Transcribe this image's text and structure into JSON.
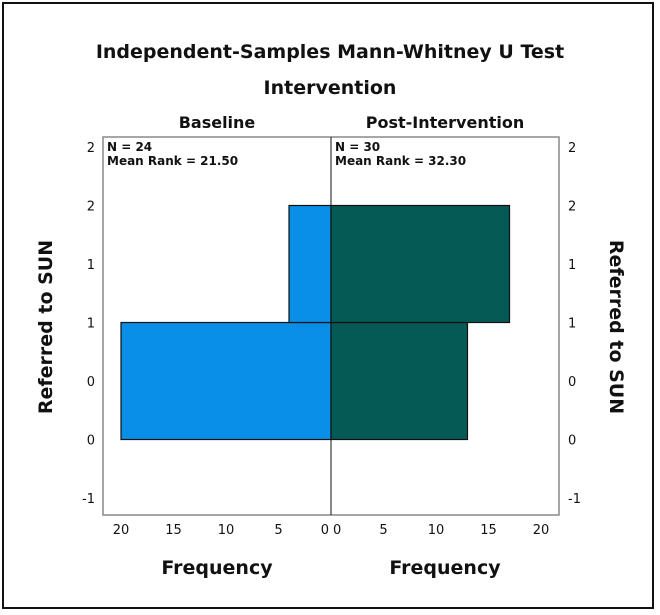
{
  "chart_data": {
    "type": "bar",
    "orientation": "back-to-back-horizontal-histogram",
    "title": "Independent-Samples Mann-Whitney U Test",
    "subtitle": "Intervention",
    "ylabel": "Referred to SUN",
    "xlabel": "Frequency",
    "ylim": [
      -0.5,
      2.5
    ],
    "y_tick_values": [
      2.5,
      2,
      1.5,
      1,
      0.5,
      0,
      -0.5
    ],
    "y_tick_labels": [
      "2",
      "2",
      "1",
      "1",
      "0",
      "0",
      "-1"
    ],
    "xlim": [
      0,
      21
    ],
    "x_tick_values": [
      0,
      5,
      10,
      15,
      20
    ],
    "x_tick_labels": [
      "0",
      "5",
      "10",
      "15",
      "20"
    ],
    "bins": [
      [
        0,
        1
      ],
      [
        1,
        2
      ]
    ],
    "series": [
      {
        "name": "Baseline",
        "side": "left",
        "color": "#0a8fe8",
        "values": [
          20,
          4
        ],
        "n_label": "N = 24",
        "mean_rank_label": "Mean Rank = 21.50"
      },
      {
        "name": "Post-Intervention",
        "side": "right",
        "color": "#055a56",
        "values": [
          13,
          17
        ],
        "n_label": "N = 30",
        "mean_rank_label": "Mean Rank = 32.30"
      }
    ]
  }
}
